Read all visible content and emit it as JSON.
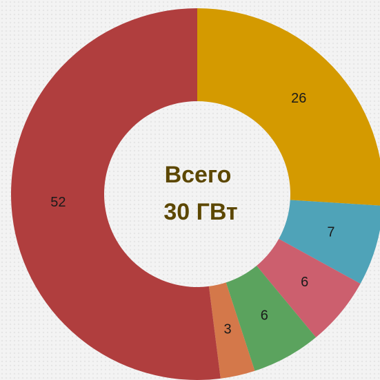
{
  "chart_data": {
    "type": "donut",
    "values": [
      26,
      7,
      6,
      6,
      3,
      52
    ],
    "colors": [
      "#d49a00",
      "#4fa3b8",
      "#cc5f6e",
      "#5ba35e",
      "#d4784a",
      "#b03e3e"
    ],
    "center_label": [
      "Всего",
      "30 ГВт"
    ]
  }
}
